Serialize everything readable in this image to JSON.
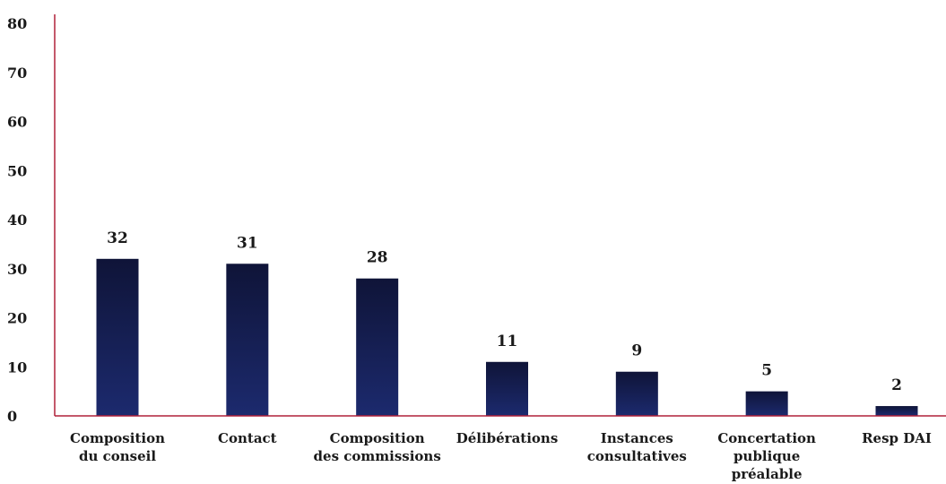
{
  "chart_data": {
    "type": "bar",
    "categories": [
      [
        "Composition",
        "du conseil"
      ],
      [
        "Contact"
      ],
      [
        "Composition",
        "des commissions"
      ],
      [
        "Délibérations"
      ],
      [
        "Instances",
        "consultatives"
      ],
      [
        "Concertation",
        "publique",
        "préalable"
      ],
      [
        "Resp DAI"
      ]
    ],
    "values": [
      32,
      31,
      28,
      11,
      9,
      5,
      2
    ],
    "data_labels": [
      "32",
      "31",
      "28",
      "11",
      "9",
      "5",
      "2"
    ],
    "y_ticks": [
      0,
      10,
      20,
      30,
      40,
      50,
      60,
      70,
      80
    ],
    "ylim": [
      0,
      80
    ],
    "title": "",
    "xlabel": "",
    "ylabel": "",
    "grid": false,
    "legend": "none",
    "colors": {
      "bar_top": "#0f1438",
      "bar_bottom": "#1c2a6e",
      "axis": "#b0203a",
      "text": "#1a1a1a"
    }
  }
}
